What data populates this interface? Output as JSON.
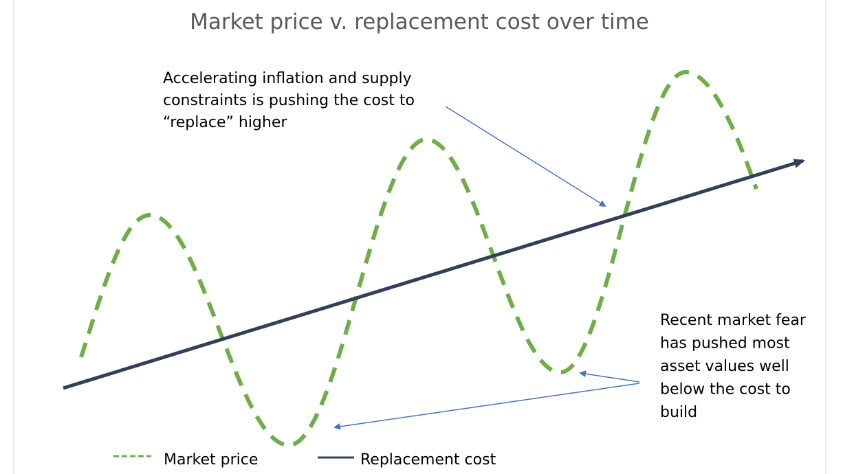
{
  "title": "Market price v. replacement cost over time",
  "annotations": [
    {
      "lines": [
        "Accelerating inflation and supply",
        "constraints is pushing the cost to",
        "“replace” higher"
      ]
    },
    {
      "lines": [
        "Recent market fear",
        "has pushed most",
        "asset values well",
        "below the cost to",
        "build"
      ]
    }
  ],
  "legend": [
    {
      "name": "Market price",
      "color": "#70ad47"
    },
    {
      "name": "Replacement cost",
      "color": "#323f59"
    }
  ],
  "arrow_color": "#4472c4"
}
